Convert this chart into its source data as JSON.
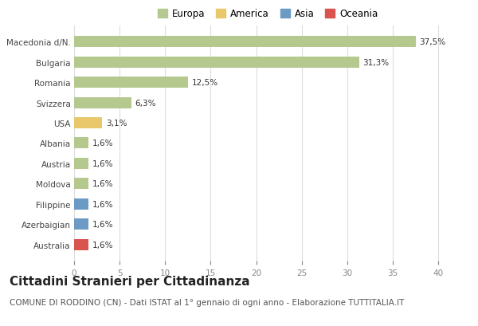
{
  "countries": [
    "Macedonia d/N.",
    "Bulgaria",
    "Romania",
    "Svizzera",
    "USA",
    "Albania",
    "Austria",
    "Moldova",
    "Filippine",
    "Azerbaigian",
    "Australia"
  ],
  "values": [
    37.5,
    31.3,
    12.5,
    6.3,
    3.1,
    1.6,
    1.6,
    1.6,
    1.6,
    1.6,
    1.6
  ],
  "labels": [
    "37,5%",
    "31,3%",
    "12,5%",
    "6,3%",
    "3,1%",
    "1,6%",
    "1,6%",
    "1,6%",
    "1,6%",
    "1,6%",
    "1,6%"
  ],
  "bar_colors": [
    "#b5c98e",
    "#b5c98e",
    "#b5c98e",
    "#b5c98e",
    "#e8c86a",
    "#b5c98e",
    "#b5c98e",
    "#b5c98e",
    "#6b9bc4",
    "#6b9bc4",
    "#d9534f"
  ],
  "legend_labels": [
    "Europa",
    "America",
    "Asia",
    "Oceania"
  ],
  "legend_colors": [
    "#b5c98e",
    "#e8c86a",
    "#6b9bc4",
    "#d9534f"
  ],
  "xlim": [
    0,
    42
  ],
  "xticks": [
    0,
    5,
    10,
    15,
    20,
    25,
    30,
    35,
    40
  ],
  "title": "Cittadini Stranieri per Cittadinanza",
  "subtitle": "COMUNE DI RODDINO (CN) - Dati ISTAT al 1° gennaio di ogni anno - Elaborazione TUTTITALIA.IT",
  "title_fontsize": 11,
  "subtitle_fontsize": 7.5,
  "label_fontsize": 7.5,
  "tick_fontsize": 7.5,
  "legend_fontsize": 8.5,
  "background_color": "#ffffff",
  "grid_color": "#dddddd"
}
